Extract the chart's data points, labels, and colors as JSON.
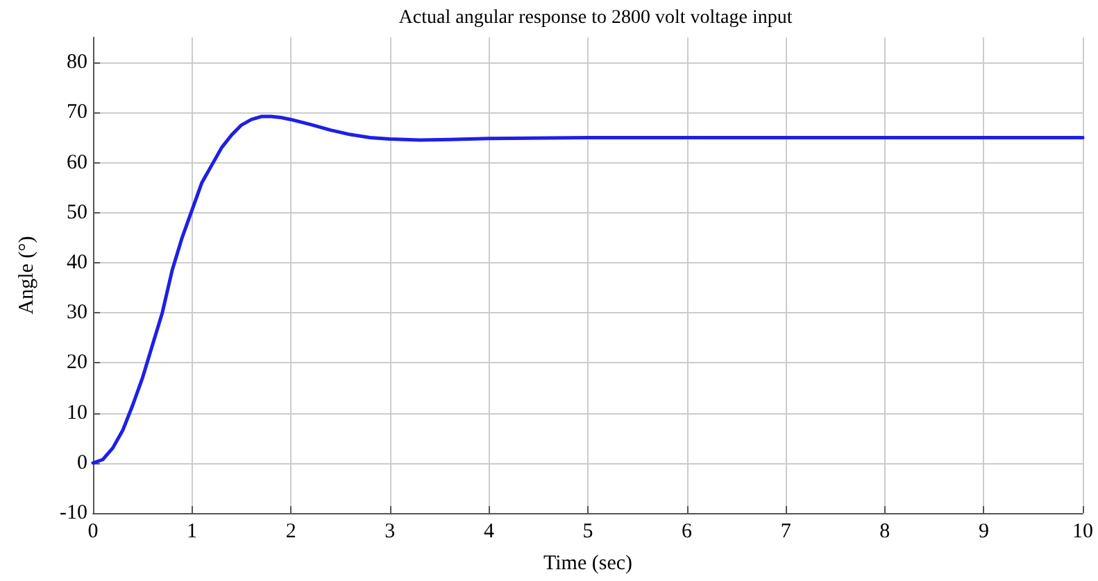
{
  "chart_data": {
    "type": "line",
    "title": "Actual angular response to 2800 volt voltage input",
    "xlabel": "Time (sec)",
    "ylabel": "Angle (°)",
    "x": [
      0,
      0.1,
      0.2,
      0.3,
      0.4,
      0.5,
      0.6,
      0.7,
      0.8,
      0.9,
      1.0,
      1.1,
      1.2,
      1.3,
      1.4,
      1.5,
      1.6,
      1.7,
      1.8,
      1.9,
      2.0,
      2.2,
      2.4,
      2.6,
      2.8,
      3.0,
      3.3,
      3.6,
      4,
      5,
      6,
      8,
      10
    ],
    "series": [
      {
        "color": "#1f1fe6",
        "values": [
          0,
          0.7,
          3,
          6.5,
          11.5,
          17,
          23.5,
          30,
          38.5,
          45,
          50.5,
          56,
          59.5,
          63,
          65.5,
          67.5,
          68.6,
          69.2,
          69.2,
          69,
          68.6,
          67.6,
          66.5,
          65.6,
          65,
          64.7,
          64.5,
          64.6,
          64.8,
          65,
          65,
          65,
          65
        ]
      }
    ],
    "xlim": [
      0,
      10
    ],
    "xticks": [
      0,
      1,
      2,
      3,
      4,
      5,
      6,
      7,
      8,
      9,
      10
    ],
    "ylim": [
      -10,
      85
    ],
    "yticks": [
      -10,
      0,
      10,
      20,
      30,
      40,
      50,
      60,
      70,
      80
    ],
    "grid": true,
    "marker": "none",
    "line_style": "solid"
  }
}
